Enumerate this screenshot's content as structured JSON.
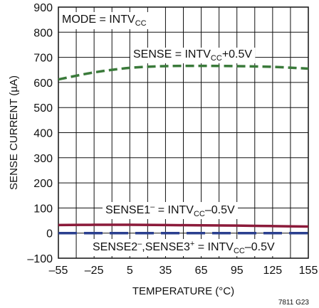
{
  "chart_data": {
    "type": "line",
    "ylabel": "SENSE CURRENT (µA)",
    "xlabel": "TEMPERATURE (°C)",
    "xlim": [
      -55,
      155
    ],
    "ylim": [
      -100,
      900
    ],
    "x_ticks": [
      "–55",
      "–25",
      "5",
      "35",
      "65",
      "95",
      "125",
      "155"
    ],
    "y_ticks": [
      "–100",
      "0",
      "100",
      "200",
      "300",
      "400",
      "500",
      "600",
      "700",
      "800",
      "900"
    ],
    "grid": true,
    "figure_code": "7811 G23",
    "mode_label": {
      "text": "MODE = INTV",
      "sub": "CC"
    },
    "series": [
      {
        "name": "SENSE = INTVCC+0.5V",
        "color": "#3a7a3a",
        "style": "dashed",
        "x": [
          -55,
          -25,
          5,
          35,
          65,
          95,
          125,
          155
        ],
        "y": [
          612,
          640,
          658,
          665,
          666,
          665,
          662,
          655
        ]
      },
      {
        "name": "SENSE1– = INTVCC–0.5V",
        "color": "#8b1a3a",
        "style": "solid",
        "x": [
          -55,
          -25,
          5,
          35,
          65,
          95,
          125,
          155
        ],
        "y": [
          32,
          33,
          33,
          32,
          31,
          30,
          28,
          26
        ]
      },
      {
        "name": "SENSE2–,SENSE3+ = INTVCC–0.5V",
        "color": "#2a3f8f",
        "style": "dashed",
        "x": [
          -55,
          -25,
          5,
          35,
          65,
          95,
          125,
          155
        ],
        "y": [
          0,
          0,
          0,
          0,
          0,
          0,
          0,
          0
        ]
      }
    ],
    "labels": {
      "green": {
        "a": "SENSE = INTV",
        "sub": "CC",
        "b": "+0.5V"
      },
      "red": {
        "a": "SENSE1",
        "sup": "–",
        "b": " = INTV",
        "sub": "CC",
        "c": "–0.5V"
      },
      "blue": {
        "a": "SENSE2",
        "sup1": "–",
        "b": ",SENSE3",
        "sup2": "+",
        "c": " = INTV",
        "sub": "CC",
        "d": "–0.5V"
      }
    }
  }
}
